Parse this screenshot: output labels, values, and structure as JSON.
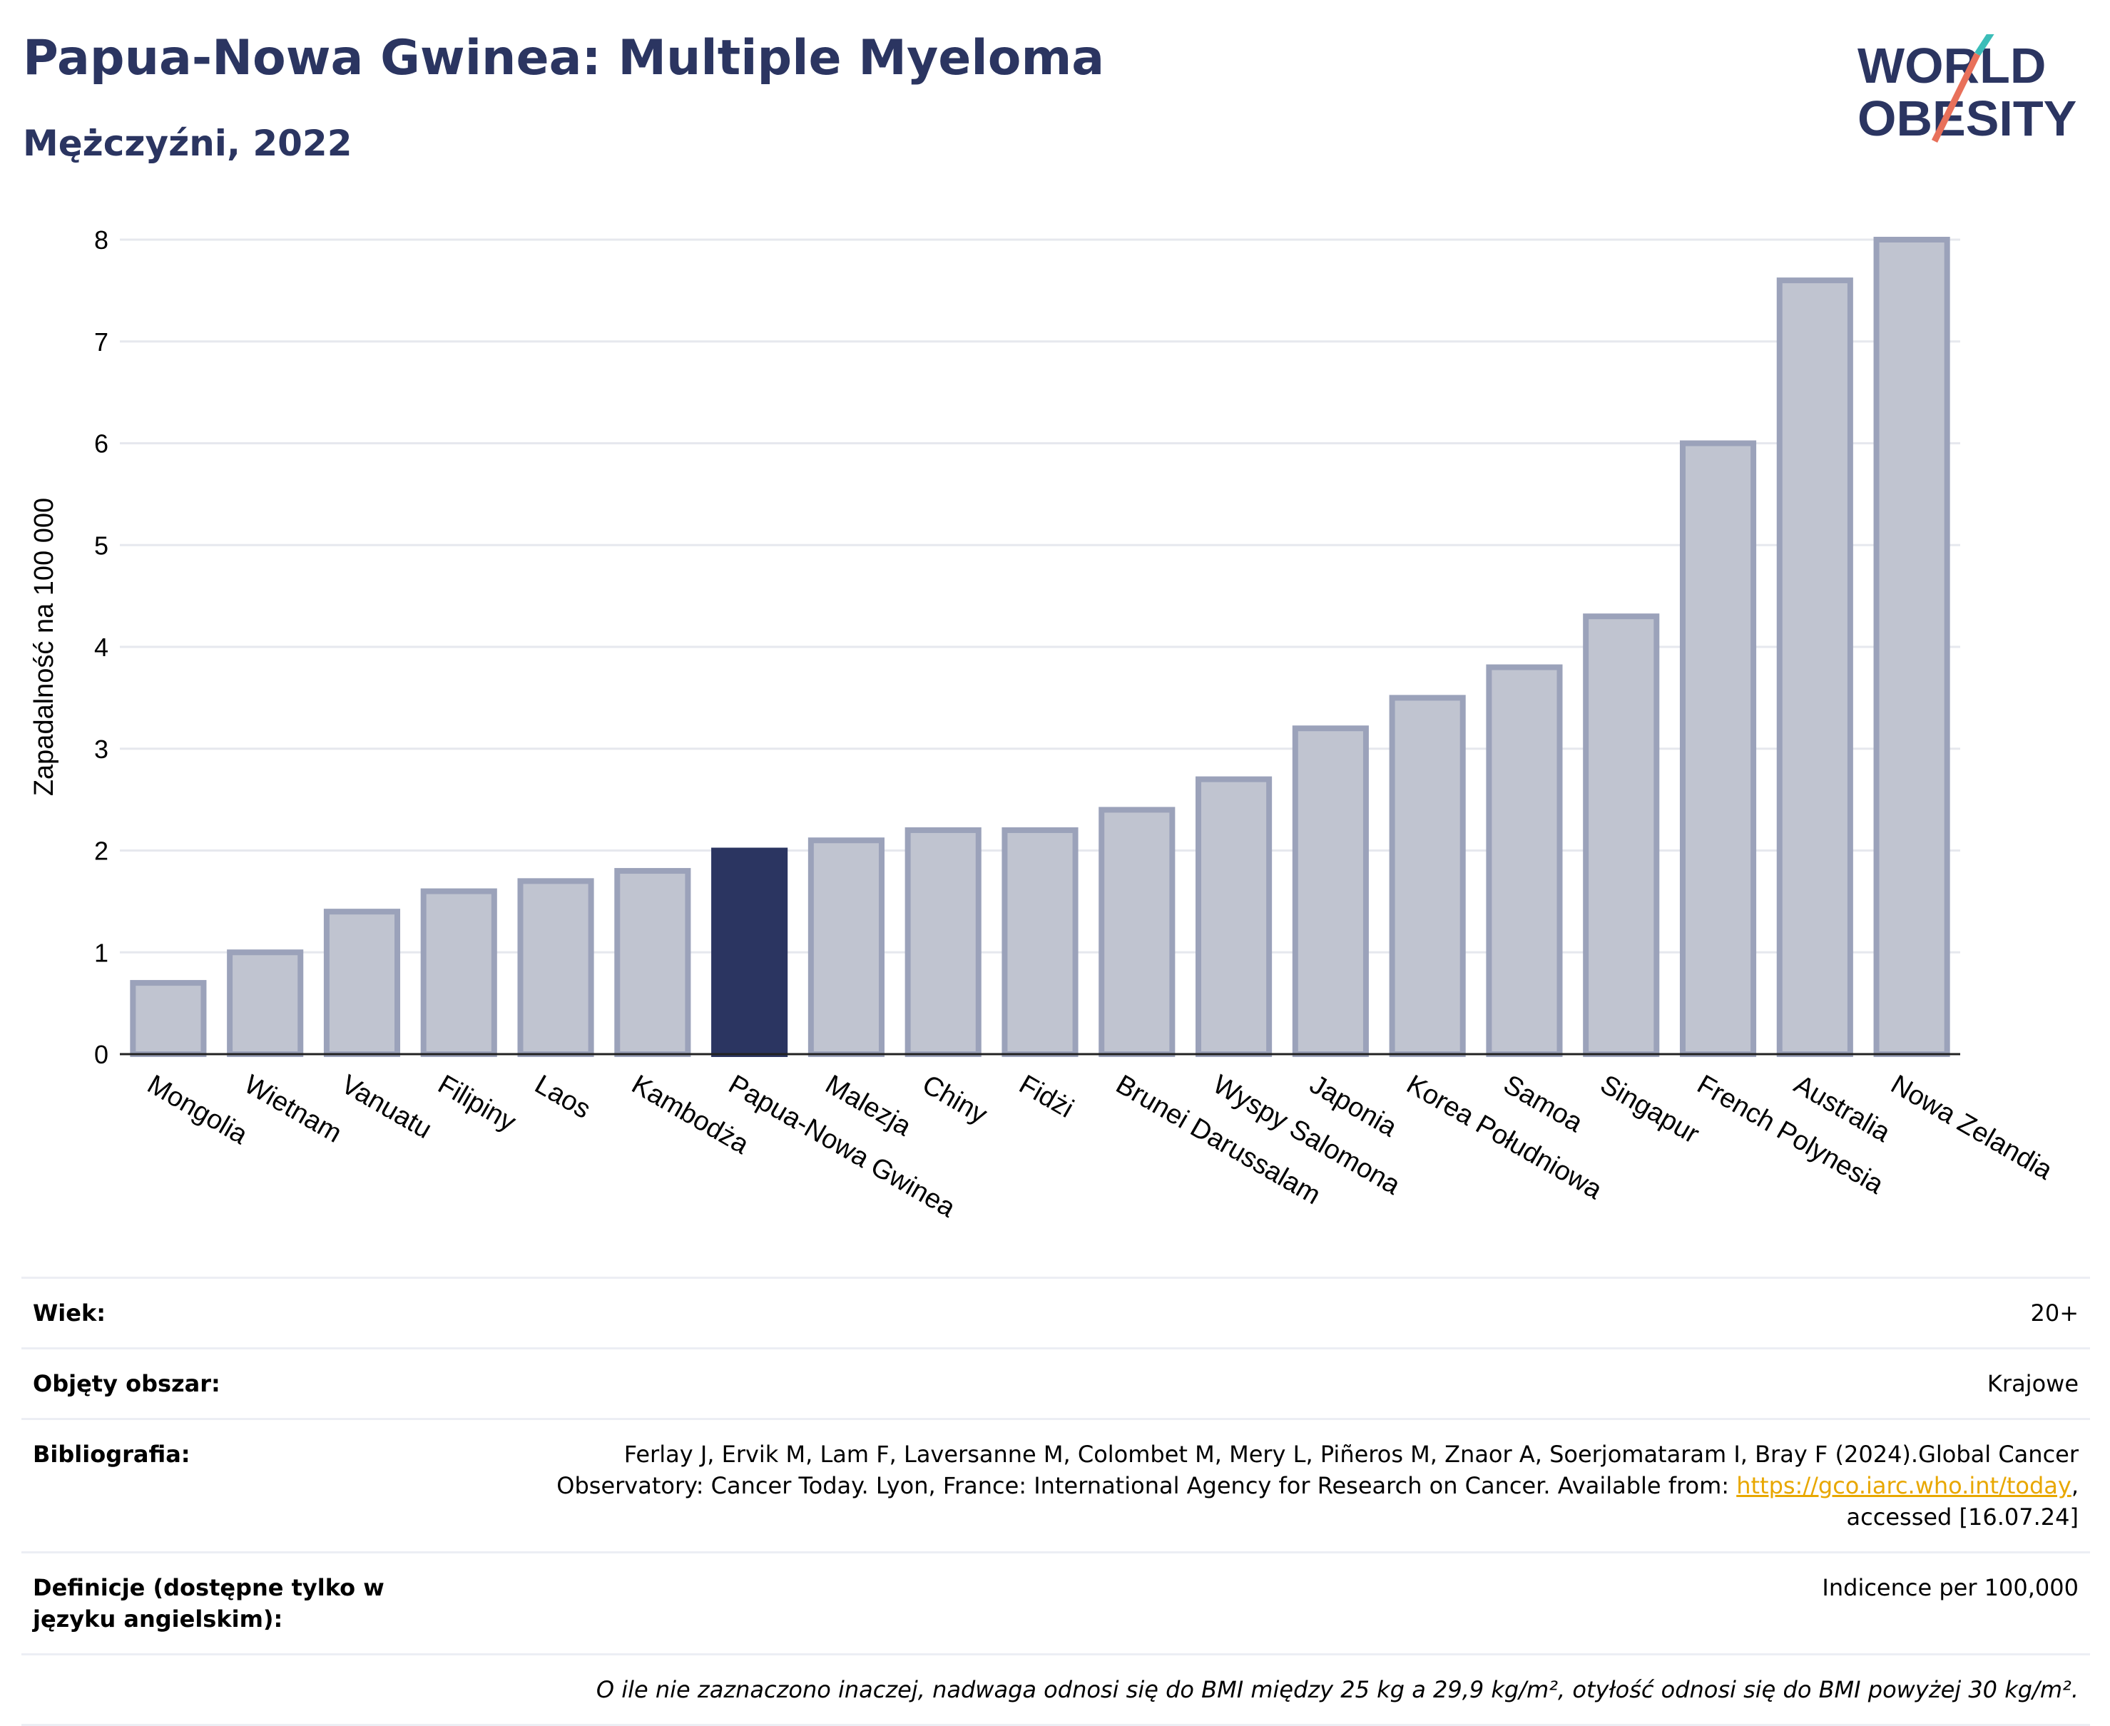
{
  "header": {
    "title": "Papua-Nowa Gwinea: Multiple Myeloma",
    "subtitle": "Mężczyźni, 2022"
  },
  "logo": {
    "line1": "WORLD",
    "line2": "OBESITY",
    "text": "WORLD OBESITY"
  },
  "colors": {
    "title": "#2b3561",
    "highlight_bar": "#2b3561",
    "bar_fill": "#c0c4d0",
    "bar_stroke": "#9ba2ba",
    "grid": "#e6e8ee",
    "logo_teal": "#3bbdb8",
    "logo_coral": "#e8705a",
    "link": "#e8a700"
  },
  "chart_data": {
    "type": "bar",
    "title": "Papua-Nowa Gwinea: Multiple Myeloma",
    "subtitle": "Mężczyźni, 2022",
    "xlabel": "",
    "ylabel": "Zapadalność na 100 000",
    "ylim": [
      0,
      8
    ],
    "yticks": [
      0,
      1,
      2,
      3,
      4,
      5,
      6,
      7,
      8
    ],
    "grid": true,
    "highlight": "Papua-Nowa Gwinea",
    "categories": [
      "Mongolia",
      "Wietnam",
      "Vanuatu",
      "Filipiny",
      "Laos",
      "Kambodża",
      "Papua-Nowa Gwinea",
      "Malezja",
      "Chiny",
      "Fidżi",
      "Brunei Darussalam",
      "Wyspy Salomona",
      "Japonia",
      "Korea Południowa",
      "Samoa",
      "Singapur",
      "French Polynesia",
      "Australia",
      "Nowa Zelandia"
    ],
    "values": [
      0.7,
      1.0,
      1.4,
      1.6,
      1.7,
      1.8,
      2.0,
      2.1,
      2.2,
      2.2,
      2.4,
      2.7,
      3.2,
      3.5,
      3.8,
      4.3,
      6.0,
      7.6,
      8.0
    ]
  },
  "info": {
    "age": {
      "label": "Wiek:",
      "value": "20+"
    },
    "area": {
      "label": "Objęty obszar:",
      "value": "Krajowe"
    },
    "bibliography": {
      "label": "Bibliografia:",
      "text1": "Ferlay J, Ervik M, Lam F, Laversanne M, Colombet M, Mery L, Piñeros M, Znaor A, Soerjomataram I, Bray F (2024).Global Cancer",
      "text2": "Observatory: Cancer Today. Lyon, France: International Agency for Research on Cancer. Available from: ",
      "link": "https://gco.iarc.who.int/today",
      "text3": ",",
      "text4": "accessed [16.07.24]"
    },
    "definitions": {
      "label": "Definicje (dostępne tylko w języku angielskim):",
      "value": "Indicence per 100,000"
    },
    "note": "O ile nie zaznaczono inaczej, nadwaga odnosi się do BMI między 25 kg a 29,9 kg/m², otyłość odnosi się do BMI powyżej 30 kg/m²."
  }
}
